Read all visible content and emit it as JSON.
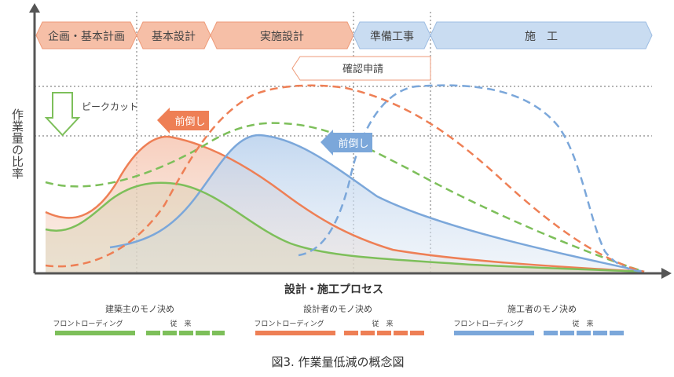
{
  "phases": [
    {
      "label": "企画・基本計画"
    },
    {
      "label": "基本設計"
    },
    {
      "label": "実施設計"
    },
    {
      "label": "準備工事"
    },
    {
      "label": "施　工"
    }
  ],
  "permit_label": "確認申請",
  "y_axis_label": "作業量の比率",
  "x_axis_label": "設計・施工プロセス",
  "peak_cut_label": "ピークカット",
  "front_arrow_orange": "前倒し",
  "front_arrow_blue": "前倒し",
  "legend": [
    {
      "title": "建築主のモノ決め",
      "front": "フロントローディング",
      "conventional": "従　来",
      "color": "#7dbf5a"
    },
    {
      "title": "設計者のモノ決め",
      "front": "フロントローディング",
      "conventional": "従　来",
      "color": "#ee7f55"
    },
    {
      "title": "施工者のモノ決め",
      "front": "フロントローディング",
      "conventional": "従　来",
      "color": "#7ba7da"
    }
  ],
  "caption": "図3. 作業量低減の概念図",
  "colors": {
    "orange": "#ee7f55",
    "green": "#7dbf5a",
    "blue": "#7ba7da",
    "phase_orange": "#f6bfa7",
    "phase_blue": "#c9dcf1"
  }
}
